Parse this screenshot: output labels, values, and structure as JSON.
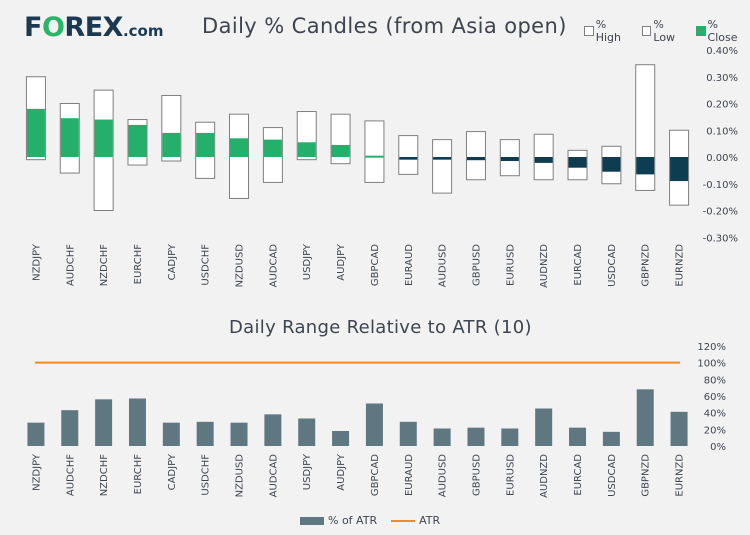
{
  "logo": {
    "brand_pre": "F",
    "brand_o": "O",
    "brand_post": "REX",
    "domain": ".com"
  },
  "chart_data": [
    {
      "type": "candlestick",
      "title": "Daily % Candles (from Asia open)",
      "legend": [
        "% High",
        "% Low",
        "% Close"
      ],
      "legend_position": "top-right",
      "y_ticks": [
        "0.40%",
        "0.30%",
        "0.20%",
        "0.10%",
        "0.00%",
        "-0.10%",
        "-0.20%",
        "-0.30%"
      ],
      "ylim": [
        -0.3,
        0.4
      ],
      "categories": [
        "NZDJPY",
        "AUDCHF",
        "NZDCHF",
        "EURCHF",
        "CADJPY",
        "USDCHF",
        "NZDUSD",
        "AUDCAD",
        "USDJPY",
        "AUDJPY",
        "GBPCAD",
        "EURAUD",
        "AUDUSD",
        "GBPUSD",
        "EURUSD",
        "AUDNZD",
        "EURCAD",
        "USDCAD",
        "GBPNZD",
        "EURNZD"
      ],
      "high": [
        0.3,
        0.2,
        0.25,
        0.14,
        0.23,
        0.13,
        0.16,
        0.11,
        0.17,
        0.16,
        0.135,
        0.08,
        0.065,
        0.095,
        0.065,
        0.085,
        0.025,
        0.04,
        0.345,
        0.1
      ],
      "low": [
        -0.01,
        -0.06,
        -0.2,
        -0.03,
        -0.015,
        -0.08,
        -0.155,
        -0.095,
        -0.01,
        -0.025,
        -0.095,
        -0.065,
        -0.135,
        -0.085,
        -0.07,
        -0.085,
        -0.085,
        -0.1,
        -0.125,
        -0.18
      ],
      "close": [
        0.18,
        0.145,
        0.14,
        0.12,
        0.09,
        0.09,
        0.07,
        0.065,
        0.055,
        0.045,
        0.005,
        -0.01,
        -0.01,
        -0.012,
        -0.015,
        -0.022,
        -0.04,
        -0.055,
        -0.065,
        -0.09
      ],
      "colors": {
        "positive": "#24b06a",
        "negative": "#0e3d52",
        "range_fill": "#ffffff",
        "range_border": "#7f7f7f"
      }
    },
    {
      "type": "bar",
      "title": "Daily Range Relative to ATR (10)",
      "legend": [
        "% of ATR",
        "ATR"
      ],
      "legend_position": "bottom",
      "y_ticks": [
        "120%",
        "100%",
        "80%",
        "60%",
        "40%",
        "20%",
        "0%"
      ],
      "ylim": [
        0,
        120
      ],
      "categories": [
        "NZDJPY",
        "AUDCHF",
        "NZDCHF",
        "EURCHF",
        "CADJPY",
        "USDCHF",
        "NZDUSD",
        "AUDCAD",
        "USDJPY",
        "AUDJPY",
        "GBPCAD",
        "EURAUD",
        "AUDUSD",
        "GBPUSD",
        "EURUSD",
        "AUDNZD",
        "EURCAD",
        "USDCAD",
        "GBPNZD",
        "EURNZD"
      ],
      "values": [
        28,
        43,
        56,
        57,
        28,
        29,
        28,
        38,
        33,
        18,
        51,
        29,
        21,
        22,
        21,
        45,
        22,
        17,
        68,
        41
      ],
      "atr_line": 100,
      "colors": {
        "bar": "#5f7780",
        "atr": "#f08a24"
      }
    }
  ]
}
